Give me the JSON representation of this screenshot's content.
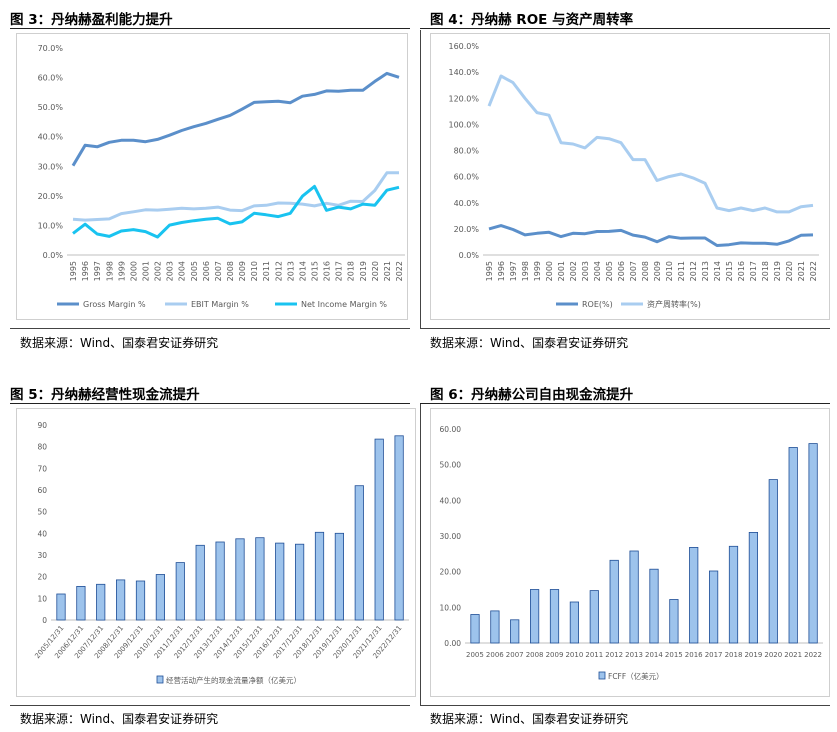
{
  "colors": {
    "gross": "#5b8fca",
    "ebit": "#a9cdf0",
    "netinc": "#19c3f0",
    "roe": "#5b8fca",
    "turnover": "#a9cdf0",
    "bar_fill": "#9dc3ec",
    "bar_edge": "#1f4e96",
    "axis_text": "#595959",
    "grid": "#d9d9d9"
  },
  "panels": [
    {
      "title": "图 3：丹纳赫盈利能力提升",
      "source": "数据来源：Wind、国泰君安证券研究",
      "chart_data": {
        "type": "line",
        "x": [
          "1995",
          "1996",
          "1997",
          "1998",
          "1999",
          "2000",
          "2001",
          "2002",
          "2003",
          "2004",
          "2005",
          "2006",
          "2007",
          "2008",
          "2009",
          "2010",
          "2011",
          "2012",
          "2013",
          "2014",
          "2015",
          "2016",
          "2017",
          "2018",
          "2019",
          "2020",
          "2021",
          "2022"
        ],
        "series": [
          {
            "name": "Gross Margin %",
            "values": [
              30.2,
              37.1,
              36.6,
              38.1,
              38.8,
              38.8,
              38.3,
              39.1,
              40.5,
              42.1,
              43.4,
              44.5,
              45.9,
              47.2,
              49.3,
              51.6,
              51.8,
              52.0,
              51.5,
              53.7,
              54.3,
              55.5,
              55.4,
              55.7,
              55.7,
              58.7,
              61.4,
              60.1
            ]
          },
          {
            "name": "EBIT Margin %",
            "values": [
              12.1,
              11.8,
              12.0,
              12.2,
              14.0,
              14.6,
              15.3,
              15.2,
              15.5,
              15.8,
              15.6,
              15.8,
              16.2,
              15.2,
              15.0,
              16.6,
              16.8,
              17.6,
              17.5,
              17.2,
              16.6,
              17.5,
              16.8,
              18.2,
              18.1,
              21.8,
              27.8,
              27.8
            ]
          },
          {
            "name": "Net Income Margin %",
            "values": [
              7.3,
              10.4,
              7.1,
              6.3,
              8.1,
              8.6,
              7.9,
              6.1,
              10.1,
              11.0,
              11.6,
              12.1,
              12.4,
              10.5,
              11.2,
              14.1,
              13.6,
              13.0,
              14.1,
              19.9,
              23.2,
              15.1,
              16.2,
              15.6,
              17.2,
              16.8,
              21.9,
              22.9
            ]
          }
        ],
        "ylim": [
          0,
          70
        ],
        "yticks": [
          "0.0%",
          "10.0%",
          "20.0%",
          "30.0%",
          "40.0%",
          "50.0%",
          "60.0%",
          "70.0%"
        ]
      }
    },
    {
      "title": "图 4：丹纳赫 ROE 与资产周转率",
      "source": "数据来源：Wind、国泰君安证券研究",
      "chart_data": {
        "type": "line",
        "x": [
          "1995",
          "1996",
          "1997",
          "1998",
          "1999",
          "2000",
          "2001",
          "2002",
          "2003",
          "2004",
          "2005",
          "2006",
          "2007",
          "2008",
          "2009",
          "2010",
          "2011",
          "2012",
          "2013",
          "2014",
          "2015",
          "2016",
          "2017",
          "2018",
          "2019",
          "2020",
          "2021",
          "2022"
        ],
        "series": [
          {
            "name": "ROE(%)",
            "values": [
              20.0,
              22.5,
              19.5,
              15.4,
              16.6,
              17.4,
              14.1,
              16.6,
              16.3,
              18.0,
              18.1,
              18.8,
              15.2,
              13.7,
              10.2,
              14.1,
              12.8,
              13.0,
              13.0,
              7.3,
              7.9,
              9.3,
              9.0,
              9.0,
              8.2,
              10.8,
              15.1,
              15.4
            ]
          },
          {
            "name": "资产周转率(%)",
            "values": [
              114,
              137,
              132,
              120,
              109,
              107,
              86,
              85,
              82,
              90,
              89,
              86,
              73,
              73,
              57,
              60,
              62,
              59,
              55,
              36,
              34,
              36,
              34,
              36,
              33,
              33,
              37,
              38
            ]
          }
        ],
        "ylim": [
          0,
          160
        ],
        "yticks": [
          "0.0%",
          "20.0%",
          "40.0%",
          "60.0%",
          "80.0%",
          "100.0%",
          "120.0%",
          "140.0%",
          "160.0%"
        ]
      }
    },
    {
      "title": "图 5：丹纳赫经营性现金流提升",
      "source": "数据来源：Wind、国泰君安证券研究",
      "chart_data": {
        "type": "bar",
        "categories": [
          "2005/12/31",
          "2006/12/31",
          "2007/12/31",
          "2008/12/31",
          "2009/12/31",
          "2010/12/31",
          "2011/12/31",
          "2012/12/31",
          "2013/12/31",
          "2014/12/31",
          "2015/12/31",
          "2016/12/31",
          "2017/12/31",
          "2018/12/31",
          "2019/12/31",
          "2020/12/31",
          "2021/12/31",
          "2022/12/31"
        ],
        "series": [
          {
            "name": "经营活动产生的现金流量净额（亿美元）",
            "values": [
              12,
              15.5,
              16.5,
              18.5,
              18,
              21,
              26.5,
              34.5,
              36,
              37.5,
              38,
              35.5,
              35,
              40.5,
              40,
              62,
              83.5,
              85
            ]
          }
        ],
        "ylim": [
          0,
          90
        ],
        "yticks": [
          "0",
          "10",
          "20",
          "30",
          "40",
          "50",
          "60",
          "70",
          "80",
          "90"
        ]
      }
    },
    {
      "title": "图 6：丹纳赫公司自由现金流提升",
      "source": "数据来源：Wind、国泰君安证券研究",
      "chart_data": {
        "type": "bar",
        "categories": [
          "2005",
          "2006",
          "2007",
          "2008",
          "2009",
          "2010",
          "2011",
          "2012",
          "2013",
          "2014",
          "2015",
          "2016",
          "2017",
          "2018",
          "2019",
          "2020",
          "2021",
          "2022"
        ],
        "series": [
          {
            "name": "FCFF（亿美元）",
            "values": [
              8.0,
              9.0,
              6.5,
              15.0,
              15.0,
              11.5,
              14.7,
              23.2,
              25.8,
              20.7,
              12.2,
              26.8,
              20.2,
              27.1,
              31.0,
              45.8,
              54.8,
              55.9
            ]
          }
        ],
        "ylim": [
          0,
          60
        ],
        "yticks": [
          "0.00",
          "10.00",
          "20.00",
          "30.00",
          "40.00",
          "50.00",
          "60.00"
        ]
      }
    }
  ]
}
